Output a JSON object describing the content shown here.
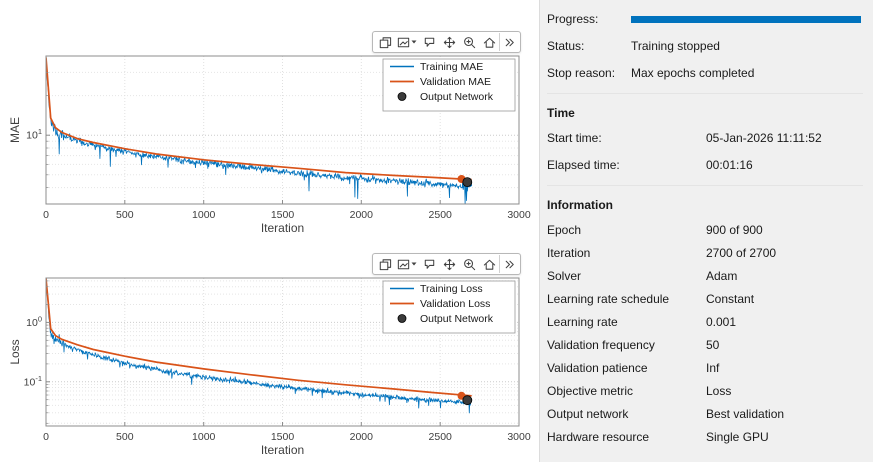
{
  "colors": {
    "progress_bar": "#0072BD",
    "training": "#0072BD",
    "validation": "#D95319",
    "output_marker": "#3b3b3b"
  },
  "toolbar": {
    "icons": [
      "copy-plot-icon",
      "save-plot-icon",
      "datatips-icon",
      "pan-icon",
      "zoom-in-icon",
      "restore-view-icon",
      "more-tools-icon"
    ]
  },
  "panel": {
    "progress": {
      "label": "Progress:",
      "percent": 100
    },
    "status": {
      "label": "Status:",
      "value": "Training stopped"
    },
    "stop_reason": {
      "label": "Stop reason:",
      "value": "Max epochs completed"
    },
    "time": {
      "title": "Time",
      "rows": [
        {
          "label": "Start time:",
          "value": "05-Jan-2026 11:11:52"
        },
        {
          "label": "Elapsed time:",
          "value": "00:01:16"
        }
      ]
    },
    "information": {
      "title": "Information",
      "rows": [
        {
          "label": "Epoch",
          "value": "900 of 900"
        },
        {
          "label": "Iteration",
          "value": "2700 of 2700"
        },
        {
          "label": "Solver",
          "value": "Adam"
        },
        {
          "label": "Learning rate schedule",
          "value": "Constant"
        },
        {
          "label": "Learning rate",
          "value": "0.001"
        },
        {
          "label": "Validation frequency",
          "value": "50"
        },
        {
          "label": "Validation patience",
          "value": "Inf"
        },
        {
          "label": "Objective metric",
          "value": "Loss"
        },
        {
          "label": "Output network",
          "value": "Best validation"
        },
        {
          "label": "Hardware resource",
          "value": "Single GPU"
        }
      ]
    }
  },
  "chart_data": [
    {
      "type": "line",
      "title": "",
      "xlabel": "Iteration",
      "ylabel": "MAE",
      "xlim": [
        0,
        3000
      ],
      "x_ticks": [
        0,
        500,
        1000,
        1500,
        2000,
        2500,
        3000
      ],
      "yscale": "log",
      "ylim": [
        3,
        40
      ],
      "grid": true,
      "legend": {
        "position": "top-right",
        "entries": [
          "Training MAE",
          "Validation MAE",
          "Output Network"
        ]
      },
      "series": [
        {
          "name": "Training MAE",
          "type": "noisy-line",
          "color": "#0072BD",
          "noise_sigma": 0.03,
          "seed": 11,
          "points": [
            [
              0,
              38
            ],
            [
              10,
              26
            ],
            [
              20,
              17
            ],
            [
              30,
              13
            ],
            [
              45,
              11.5
            ],
            [
              70,
              10.6
            ],
            [
              100,
              10.1
            ],
            [
              150,
              9.5
            ],
            [
              220,
              8.9
            ],
            [
              300,
              8.4
            ],
            [
              400,
              7.9
            ],
            [
              500,
              7.5
            ],
            [
              650,
              7.0
            ],
            [
              800,
              6.6
            ],
            [
              1000,
              6.15
            ],
            [
              1200,
              5.8
            ],
            [
              1400,
              5.45
            ],
            [
              1600,
              5.15
            ],
            [
              1800,
              4.9
            ],
            [
              2000,
              4.7
            ],
            [
              2200,
              4.5
            ],
            [
              2400,
              4.3
            ],
            [
              2550,
              4.15
            ],
            [
              2700,
              4.05
            ]
          ]
        },
        {
          "name": "Validation MAE",
          "type": "line",
          "color": "#D95319",
          "points": [
            [
              0,
              39
            ],
            [
              30,
              13.5
            ],
            [
              60,
              11.4
            ],
            [
              100,
              10.5
            ],
            [
              200,
              9.4
            ],
            [
              300,
              8.8
            ],
            [
              500,
              7.9
            ],
            [
              700,
              7.2
            ],
            [
              1000,
              6.5
            ],
            [
              1300,
              6.0
            ],
            [
              1600,
              5.6
            ],
            [
              1900,
              5.2
            ],
            [
              2200,
              4.95
            ],
            [
              2450,
              4.78
            ],
            [
              2700,
              4.6
            ]
          ],
          "end_marker": [
            2635,
            4.65
          ]
        },
        {
          "name": "Output Network",
          "type": "marker",
          "color": "#3b3b3b",
          "point": [
            2672,
            4.4
          ]
        }
      ]
    },
    {
      "type": "line",
      "title": "",
      "xlabel": "Iteration",
      "ylabel": "Loss",
      "xlim": [
        0,
        3000
      ],
      "x_ticks": [
        0,
        500,
        1000,
        1500,
        2000,
        2500,
        3000
      ],
      "yscale": "log",
      "ylim": [
        0.018,
        5.6
      ],
      "grid": true,
      "legend": {
        "position": "top-right",
        "entries": [
          "Training Loss",
          "Validation Loss",
          "Output Network"
        ]
      },
      "series": [
        {
          "name": "Training Loss",
          "type": "noisy-line",
          "color": "#0072BD",
          "noise_sigma": 0.05,
          "seed": 23,
          "points": [
            [
              0,
              5.2
            ],
            [
              8,
              3.0
            ],
            [
              16,
              1.5
            ],
            [
              24,
              0.85
            ],
            [
              32,
              0.64
            ],
            [
              50,
              0.54
            ],
            [
              80,
              0.47
            ],
            [
              120,
              0.42
            ],
            [
              180,
              0.36
            ],
            [
              250,
              0.31
            ],
            [
              350,
              0.26
            ],
            [
              500,
              0.205
            ],
            [
              650,
              0.17
            ],
            [
              800,
              0.145
            ],
            [
              1000,
              0.12
            ],
            [
              1200,
              0.102
            ],
            [
              1400,
              0.088
            ],
            [
              1600,
              0.077
            ],
            [
              1800,
              0.068
            ],
            [
              2000,
              0.061
            ],
            [
              2200,
              0.055
            ],
            [
              2400,
              0.05
            ],
            [
              2550,
              0.047
            ],
            [
              2700,
              0.044
            ]
          ]
        },
        {
          "name": "Validation Loss",
          "type": "line",
          "color": "#D95319",
          "points": [
            [
              0,
              5.5
            ],
            [
              30,
              0.78
            ],
            [
              60,
              0.6
            ],
            [
              100,
              0.52
            ],
            [
              200,
              0.42
            ],
            [
              300,
              0.35
            ],
            [
              500,
              0.27
            ],
            [
              700,
              0.215
            ],
            [
              1000,
              0.165
            ],
            [
              1300,
              0.131
            ],
            [
              1600,
              0.106
            ],
            [
              1900,
              0.089
            ],
            [
              2200,
              0.076
            ],
            [
              2450,
              0.066
            ],
            [
              2700,
              0.058
            ]
          ],
          "end_marker": [
            2635,
            0.058
          ]
        },
        {
          "name": "Output Network",
          "type": "marker",
          "color": "#3b3b3b",
          "point": [
            2672,
            0.049
          ]
        }
      ]
    }
  ]
}
